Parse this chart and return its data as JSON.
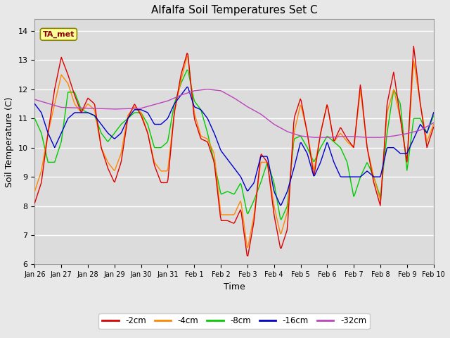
{
  "title": "Alfalfa Soil Temperatures Set C",
  "xlabel": "Time",
  "ylabel": "Soil Temperature (C)",
  "ylim": [
    6.0,
    14.4
  ],
  "yticks": [
    6.0,
    7.0,
    8.0,
    9.0,
    10.0,
    11.0,
    12.0,
    13.0,
    14.0
  ],
  "fig_bg_color": "#e8e8e8",
  "plot_bg_color": "#dcdcdc",
  "grid_color": "#ffffff",
  "colors": {
    "-2cm": "#dd0000",
    "-4cm": "#ff8800",
    "-8cm": "#00cc00",
    "-16cm": "#0000cc",
    "-32cm": "#bb44bb"
  },
  "annotation_text": "TA_met",
  "annotation_box_color": "#ffff99",
  "annotation_border_color": "#888800",
  "x_tick_labels": [
    "Jan 26",
    "Jan 27",
    "Jan 28",
    "Jan 29",
    "Jan 30",
    "Jan 31",
    "Feb 1",
    "Feb 2",
    "Feb 3",
    "Feb 4",
    "Feb 5",
    "Feb 6",
    "Feb 7",
    "Feb 8",
    "Feb 9",
    "Feb 10"
  ],
  "num_points": 480
}
